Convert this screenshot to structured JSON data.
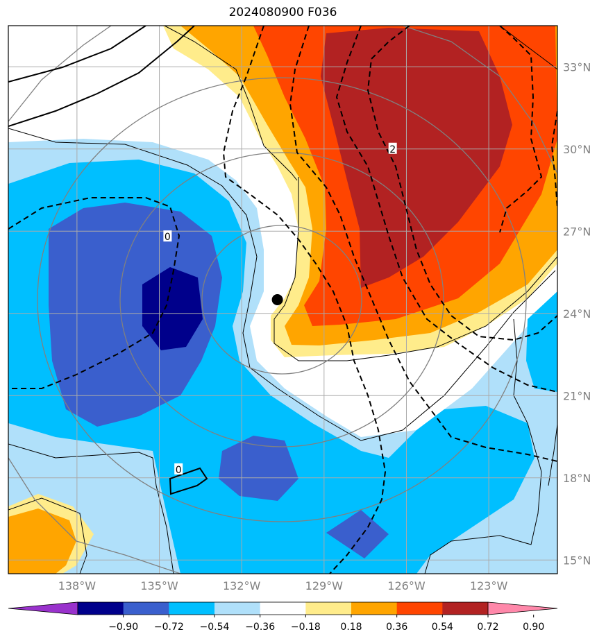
{
  "chart_data": {
    "type": "heatmap",
    "title": "2024080900 F036",
    "xlim": [
      -140.5,
      -120.5
    ],
    "ylim": [
      14.5,
      34.5
    ],
    "x_ticks": [
      {
        "value": -138,
        "label": "138°W"
      },
      {
        "value": -135,
        "label": "135°W"
      },
      {
        "value": -132,
        "label": "132°W"
      },
      {
        "value": -129,
        "label": "129°W"
      },
      {
        "value": -126,
        "label": "126°W"
      },
      {
        "value": -123,
        "label": "123°W"
      }
    ],
    "y_ticks": [
      {
        "value": 15,
        "label": "15°N"
      },
      {
        "value": 18,
        "label": "18°N"
      },
      {
        "value": 21,
        "label": "21°N"
      },
      {
        "value": 24,
        "label": "24°N"
      },
      {
        "value": 27,
        "label": "27°N"
      },
      {
        "value": 30,
        "label": "30°N"
      },
      {
        "value": 33,
        "label": "33°N"
      }
    ],
    "grid": true,
    "colorbar": {
      "levels": [
        "−0.90",
        "−0.72",
        "−0.54",
        "−0.36",
        "−0.18",
        "0.18",
        "0.36",
        "0.54",
        "0.72",
        "0.90"
      ],
      "colors": [
        "#9932cc",
        "#00008b",
        "#3a5fcd",
        "#00bfff",
        "#b0e0fa",
        "#ffffff",
        "#ffec8b",
        "#ffa500",
        "#ff4500",
        "#b22222",
        "#ff88aa"
      ]
    },
    "storm_center": {
      "lon": -130.7,
      "lat": 24.5
    },
    "contour_labels": [
      {
        "text": "0",
        "lon": -134.7,
        "lat": 26.8
      },
      {
        "text": "0",
        "lon": -134.3,
        "lat": 18.3
      },
      {
        "text": "2",
        "lon": -126.5,
        "lat": 30.0
      }
    ]
  }
}
